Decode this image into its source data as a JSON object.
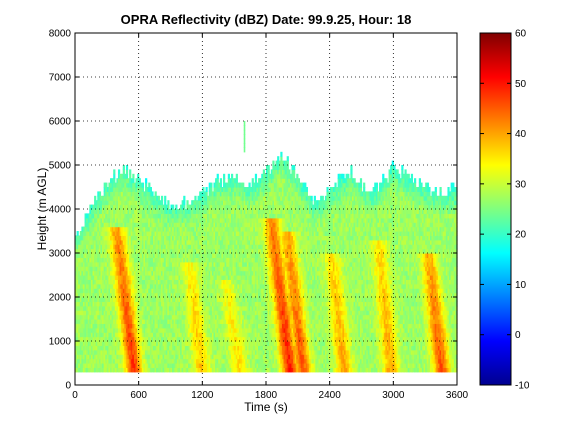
{
  "chart_data": {
    "type": "heatmap",
    "title": "OPRA Reflectivity (dBZ)  Date: 99.9.25, Hour: 18",
    "xlabel": "Time (s)",
    "ylabel": "Height (m AGL)",
    "xlim": [
      0,
      3600
    ],
    "ylim": [
      0,
      8000
    ],
    "x_ticks": [
      "0",
      "600",
      "1200",
      "1800",
      "2400",
      "3000",
      "3600"
    ],
    "y_ticks": [
      "0",
      "1000",
      "2000",
      "3000",
      "4000",
      "5000",
      "6000",
      "7000",
      "8000"
    ],
    "grid": true,
    "colorbar": {
      "range": [
        -10,
        60
      ],
      "ticks": [
        "-10",
        "0",
        "10",
        "20",
        "30",
        "40",
        "50",
        "60"
      ]
    },
    "data_bottom_m": 300,
    "echo_top_profile_m": [
      {
        "t": 0,
        "top": 3400
      },
      {
        "t": 100,
        "top": 3700
      },
      {
        "t": 200,
        "top": 4200
      },
      {
        "t": 300,
        "top": 4500
      },
      {
        "t": 450,
        "top": 4900
      },
      {
        "t": 600,
        "top": 4600
      },
      {
        "t": 750,
        "top": 4300
      },
      {
        "t": 900,
        "top": 4000
      },
      {
        "t": 1050,
        "top": 4100
      },
      {
        "t": 1200,
        "top": 4300
      },
      {
        "t": 1350,
        "top": 4600
      },
      {
        "t": 1500,
        "top": 4700
      },
      {
        "t": 1650,
        "top": 4500
      },
      {
        "t": 1800,
        "top": 4800
      },
      {
        "t": 1950,
        "top": 5200
      },
      {
        "t": 2100,
        "top": 4700
      },
      {
        "t": 2250,
        "top": 4100
      },
      {
        "t": 2400,
        "top": 4400
      },
      {
        "t": 2600,
        "top": 4800
      },
      {
        "t": 2800,
        "top": 4300
      },
      {
        "t": 3000,
        "top": 4900
      },
      {
        "t": 3200,
        "top": 4600
      },
      {
        "t": 3400,
        "top": 4300
      },
      {
        "t": 3600,
        "top": 4400
      }
    ],
    "isolated_echo": {
      "t": 1590,
      "bottom": 5300,
      "top": 6000
    },
    "reflectivity_cores": [
      {
        "t_bottom": 560,
        "t_top": 390,
        "top": 3600,
        "dbz": 48
      },
      {
        "t_bottom": 1200,
        "t_top": 1080,
        "top": 2800,
        "dbz": 38
      },
      {
        "t_bottom": 1560,
        "t_top": 1420,
        "top": 2400,
        "dbz": 36
      },
      {
        "t_bottom": 2030,
        "t_top": 1850,
        "top": 3800,
        "dbz": 50
      },
      {
        "t_bottom": 2150,
        "t_top": 2000,
        "top": 3500,
        "dbz": 46
      },
      {
        "t_bottom": 2540,
        "t_top": 2420,
        "top": 3000,
        "dbz": 40
      },
      {
        "t_bottom": 2980,
        "t_top": 2860,
        "top": 3300,
        "dbz": 40
      },
      {
        "t_bottom": 3460,
        "t_top": 3330,
        "top": 3000,
        "dbz": 46
      }
    ],
    "background_dbz": 27,
    "low_level_weak_region": {
      "t_end": 330,
      "top": 2800,
      "dbz": 18
    }
  }
}
